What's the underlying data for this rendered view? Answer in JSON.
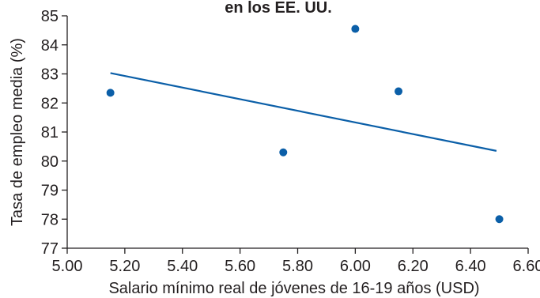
{
  "chart_data": {
    "type": "scatter",
    "title": "en los EE. UU.",
    "xlabel": "Salario mínimo real de jóvenes de 16-19 años (USD)",
    "ylabel": "Tasa de empleo media (%)",
    "xlim": [
      5.0,
      6.6
    ],
    "ylim": [
      77,
      85
    ],
    "x_ticks": [
      "5.00",
      "5.20",
      "5.40",
      "5.60",
      "5.80",
      "6.00",
      "6.20",
      "6.40",
      "6.60"
    ],
    "y_ticks": [
      "77",
      "78",
      "79",
      "80",
      "81",
      "82",
      "83",
      "84",
      "85"
    ],
    "points": [
      {
        "x": 5.15,
        "y": 82.35
      },
      {
        "x": 5.75,
        "y": 80.3
      },
      {
        "x": 6.0,
        "y": 84.55
      },
      {
        "x": 6.15,
        "y": 82.4
      },
      {
        "x": 6.5,
        "y": 78.0
      }
    ],
    "trendline": {
      "x": [
        5.15,
        6.49
      ],
      "y": [
        83.03,
        80.35
      ]
    },
    "grid": false,
    "colors": {
      "point": "#0b5fa8",
      "line": "#0b5fa8",
      "axis": "#231f20"
    }
  }
}
